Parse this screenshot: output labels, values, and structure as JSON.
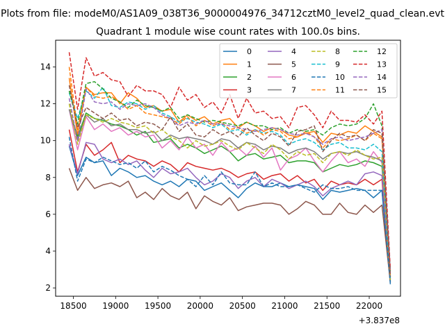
{
  "chart_data": {
    "type": "line",
    "suptitle": "Plots from file: modeM0/AS1A09_038T36_9000004976_34712cztM0_level2_quad_clean.evt",
    "title": "Quadrant 1 module wise count rates with 100.0s bins.",
    "xlabel": "",
    "ylabel": "",
    "x_offset_label": "+3.837e8",
    "xlim": [
      18290,
      22370
    ],
    "ylim": [
      1.55,
      15.45
    ],
    "x_ticks": [
      18500,
      19000,
      19500,
      20000,
      20500,
      21000,
      21500,
      22000
    ],
    "x_tick_labels": [
      "18500",
      "19000",
      "19500",
      "20000",
      "20500",
      "21000",
      "21500",
      "22000"
    ],
    "y_ticks": [
      2,
      4,
      6,
      8,
      10,
      12,
      14
    ],
    "y_tick_labels": [
      "2",
      "4",
      "6",
      "8",
      "10",
      "12",
      "14"
    ],
    "grid": false,
    "legend_position": "upper-right",
    "x": [
      18450,
      18550,
      18650,
      18750,
      18850,
      18950,
      19050,
      19150,
      19250,
      19350,
      19450,
      19550,
      19650,
      19750,
      19850,
      19950,
      20050,
      20150,
      20250,
      20350,
      20450,
      20550,
      20650,
      20750,
      20850,
      20950,
      21050,
      21150,
      21250,
      21350,
      21450,
      21550,
      21650,
      21750,
      21850,
      21950,
      22050,
      22150,
      22250
    ],
    "series": [
      {
        "name": "0",
        "color": "#1f77b4",
        "dash": "solid",
        "values": [
          9.7,
          8.1,
          9.1,
          8.8,
          8.9,
          8.1,
          8.5,
          8.3,
          8.0,
          8.1,
          7.8,
          7.6,
          7.8,
          7.5,
          7.9,
          7.8,
          7.3,
          7.5,
          7.7,
          7.3,
          6.9,
          7.4,
          7.7,
          7.5,
          7.5,
          7.7,
          7.5,
          7.6,
          7.5,
          7.4,
          6.8,
          7.3,
          7.2,
          7.3,
          7.4,
          7.3,
          6.9,
          7.3,
          2.2
        ]
      },
      {
        "name": "1",
        "color": "#ff7f0e",
        "dash": "solid",
        "values": [
          13.4,
          10.3,
          12.9,
          12.5,
          12.6,
          12.6,
          12.0,
          12.6,
          12.3,
          11.8,
          11.9,
          11.6,
          11.7,
          11.0,
          11.4,
          11.1,
          11.3,
          10.9,
          11.1,
          11.2,
          10.7,
          11.0,
          10.8,
          10.5,
          10.7,
          10.6,
          10.3,
          10.2,
          10.4,
          10.5,
          9.9,
          10.4,
          10.3,
          10.5,
          10.4,
          10.8,
          10.5,
          10.2,
          2.6
        ]
      },
      {
        "name": "2",
        "color": "#2ca02c",
        "dash": "solid",
        "values": [
          11.7,
          10.2,
          11.5,
          11.2,
          11.1,
          10.9,
          10.8,
          10.6,
          10.3,
          10.5,
          9.9,
          10.0,
          10.1,
          9.6,
          9.8,
          9.6,
          9.3,
          9.5,
          9.7,
          9.4,
          8.9,
          9.2,
          9.3,
          9.0,
          9.1,
          9.2,
          8.8,
          8.9,
          8.9,
          8.8,
          8.3,
          8.5,
          8.7,
          8.6,
          8.7,
          8.9,
          8.8,
          8.6,
          2.4
        ]
      },
      {
        "name": "3",
        "color": "#d62728",
        "dash": "solid",
        "values": [
          10.6,
          8.3,
          9.8,
          9.2,
          9.5,
          9.9,
          8.8,
          9.2,
          9.0,
          8.9,
          8.6,
          8.9,
          8.7,
          8.3,
          8.8,
          8.6,
          8.5,
          8.4,
          8.5,
          8.3,
          8.0,
          8.2,
          8.3,
          7.9,
          8.1,
          8.2,
          7.8,
          8.1,
          7.7,
          7.9,
          7.3,
          7.8,
          7.6,
          7.7,
          7.6,
          7.9,
          7.6,
          7.9,
          2.3
        ]
      },
      {
        "name": "4",
        "color": "#9467bd",
        "dash": "solid",
        "values": [
          9.8,
          8.2,
          9.9,
          9.8,
          9.0,
          8.8,
          9.0,
          8.7,
          8.9,
          8.4,
          8.0,
          8.5,
          8.2,
          8.3,
          8.5,
          8.0,
          7.6,
          7.8,
          8.2,
          8.0,
          7.4,
          7.8,
          8.0,
          7.5,
          7.9,
          7.7,
          7.4,
          7.6,
          7.8,
          7.5,
          7.0,
          7.4,
          7.6,
          7.8,
          7.6,
          8.2,
          8.3,
          8.1,
          2.5
        ]
      },
      {
        "name": "5",
        "color": "#8c564b",
        "dash": "solid",
        "values": [
          8.5,
          7.3,
          8.0,
          7.4,
          7.6,
          7.7,
          7.5,
          7.8,
          6.9,
          7.2,
          6.8,
          7.4,
          7.0,
          6.8,
          7.2,
          6.3,
          7.0,
          6.7,
          6.5,
          6.9,
          6.2,
          6.4,
          6.5,
          6.6,
          6.6,
          6.5,
          6.0,
          6.3,
          6.7,
          6.5,
          6.0,
          6.0,
          6.6,
          6.1,
          6.0,
          6.5,
          6.1,
          6.5,
          2.3
        ]
      },
      {
        "name": "6",
        "color": "#e377c2",
        "dash": "solid",
        "values": [
          11.7,
          9.5,
          11.3,
          10.6,
          10.9,
          10.5,
          10.7,
          10.3,
          10.5,
          10.2,
          10.3,
          9.6,
          10.0,
          9.5,
          10.2,
          9.6,
          9.8,
          9.2,
          9.9,
          9.4,
          9.6,
          9.2,
          9.7,
          9.1,
          9.6,
          8.4,
          9.0,
          9.2,
          9.6,
          8.9,
          8.3,
          8.9,
          9.4,
          8.8,
          9.0,
          8.6,
          9.4,
          8.8,
          2.4
        ]
      },
      {
        "name": "7",
        "color": "#7f7f7f",
        "dash": "solid",
        "values": [
          11.7,
          10.0,
          11.4,
          11.0,
          11.2,
          10.8,
          10.9,
          10.6,
          10.6,
          10.4,
          10.5,
          10.0,
          10.3,
          10.1,
          10.2,
          10.1,
          10.0,
          9.8,
          10.1,
          10.0,
          9.6,
          9.9,
          9.8,
          9.5,
          9.7,
          9.6,
          9.3,
          9.5,
          9.6,
          9.4,
          9.0,
          9.3,
          9.4,
          9.3,
          9.4,
          9.2,
          9.1,
          8.9,
          2.5
        ]
      },
      {
        "name": "8",
        "color": "#bcbd22",
        "dash": "dashed",
        "values": [
          12.0,
          9.8,
          11.4,
          11.2,
          11.0,
          11.2,
          11.0,
          10.9,
          10.7,
          10.8,
          10.4,
          10.6,
          10.2,
          10.0,
          9.6,
          10.0,
          9.7,
          9.8,
          10.0,
          9.7,
          9.5,
          9.9,
          9.6,
          9.3,
          9.8,
          9.5,
          9.0,
          9.4,
          9.2,
          9.3,
          8.8,
          9.3,
          9.4,
          9.2,
          9.5,
          9.2,
          9.0,
          9.1,
          2.4
        ]
      },
      {
        "name": "9",
        "color": "#17becf",
        "dash": "dashed",
        "values": [
          12.6,
          11.2,
          12.7,
          12.3,
          12.9,
          11.9,
          11.8,
          12.1,
          12.0,
          11.7,
          11.9,
          11.5,
          11.3,
          11.0,
          11.2,
          11.0,
          10.9,
          10.7,
          10.9,
          10.5,
          10.6,
          10.3,
          10.6,
          10.4,
          10.5,
          10.3,
          9.8,
          10.0,
          10.1,
          9.9,
          9.5,
          9.8,
          9.9,
          9.6,
          9.6,
          9.5,
          9.8,
          9.4,
          2.5
        ]
      },
      {
        "name": "10",
        "color": "#1f77b4",
        "dash": "dashed",
        "values": [
          10.2,
          7.8,
          9.0,
          8.8,
          9.1,
          8.9,
          8.7,
          8.8,
          8.5,
          8.9,
          8.3,
          8.6,
          8.4,
          8.1,
          7.9,
          7.5,
          8.1,
          7.6,
          8.3,
          7.7,
          7.6,
          7.6,
          8.3,
          7.5,
          7.7,
          7.5,
          7.5,
          7.6,
          7.4,
          7.2,
          7.6,
          7.4,
          7.4,
          7.5,
          7.3,
          7.3,
          7.3,
          7.3,
          2.3
        ]
      },
      {
        "name": "11",
        "color": "#ff7f0e",
        "dash": "dashed",
        "values": [
          14.0,
          10.6,
          12.9,
          12.4,
          12.3,
          12.4,
          12.1,
          11.7,
          11.9,
          11.5,
          11.4,
          11.3,
          11.2,
          10.9,
          11.3,
          10.8,
          11.1,
          10.8,
          11.0,
          10.6,
          10.7,
          10.4,
          10.6,
          10.3,
          10.6,
          10.5,
          10.1,
          10.2,
          10.5,
          10.2,
          9.6,
          10.1,
          10.0,
          10.1,
          10.3,
          10.0,
          10.4,
          10.1,
          2.7
        ]
      },
      {
        "name": "12",
        "color": "#2ca02c",
        "dash": "dashed",
        "values": [
          12.7,
          10.9,
          13.1,
          13.2,
          12.8,
          12.3,
          12.1,
          11.8,
          12.2,
          11.9,
          11.8,
          11.6,
          11.8,
          11.2,
          11.4,
          11.2,
          11.0,
          11.1,
          11.0,
          10.9,
          10.8,
          11.0,
          10.8,
          10.8,
          10.6,
          10.7,
          10.4,
          10.6,
          10.5,
          10.6,
          10.3,
          10.7,
          10.9,
          10.8,
          10.9,
          11.2,
          12.0,
          10.8,
          2.9
        ]
      },
      {
        "name": "13",
        "color": "#d62728",
        "dash": "dashed",
        "values": [
          14.8,
          11.7,
          14.5,
          13.5,
          13.7,
          13.3,
          13.2,
          12.4,
          13.0,
          12.7,
          12.7,
          12.5,
          11.8,
          12.9,
          12.2,
          12.5,
          11.8,
          12.1,
          11.5,
          12.5,
          11.2,
          12.3,
          11.5,
          11.6,
          11.2,
          11.3,
          10.7,
          11.8,
          11.9,
          11.4,
          10.7,
          11.6,
          11.1,
          11.1,
          11.0,
          11.4,
          10.9,
          11.6,
          3.0
        ]
      },
      {
        "name": "14",
        "color": "#9467bd",
        "dash": "dashed",
        "values": [
          12.3,
          10.0,
          12.8,
          12.1,
          12.0,
          12.1,
          11.7,
          12.0,
          11.9,
          12.0,
          11.8,
          11.4,
          11.2,
          10.8,
          11.0,
          10.9,
          11.1,
          10.9,
          10.9,
          10.8,
          10.7,
          10.6,
          10.5,
          10.6,
          10.7,
          10.6,
          10.4,
          10.3,
          10.4,
          10.2,
          9.8,
          10.1,
          10.2,
          10.0,
          10.1,
          10.2,
          10.4,
          10.6,
          2.8
        ]
      },
      {
        "name": "15",
        "color": "#8c564b",
        "dash": "dashed",
        "values": [
          13.0,
          10.7,
          11.8,
          11.5,
          11.2,
          11.5,
          11.1,
          11.2,
          10.8,
          11.0,
          10.9,
          10.6,
          11.3,
          10.5,
          10.9,
          10.3,
          10.2,
          10.6,
          10.3,
          10.5,
          10.2,
          10.7,
          10.3,
          10.0,
          10.4,
          10.2,
          9.7,
          10.5,
          10.6,
          10.8,
          9.4,
          10.0,
          10.4,
          10.2,
          10.3,
          10.0,
          10.6,
          10.4,
          2.6
        ]
      }
    ]
  }
}
